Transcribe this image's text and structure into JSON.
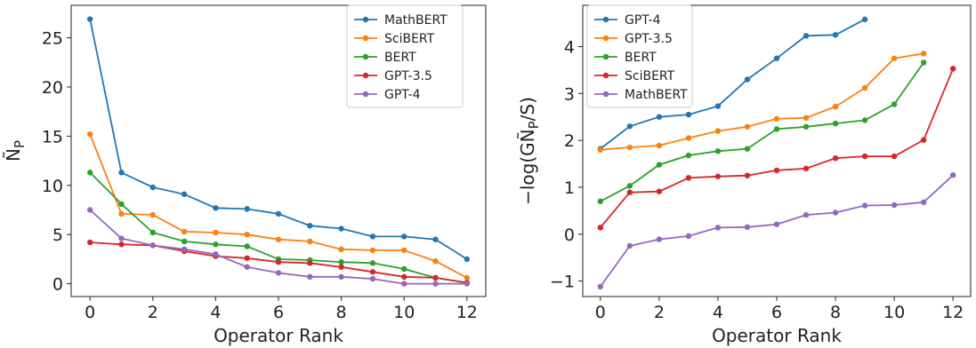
{
  "chart_data": [
    {
      "type": "line",
      "xlabel": "Operator Rank",
      "ylabel": "Ñ_P",
      "xlim": [
        -0.6,
        12.6
      ],
      "ylim": [
        -1.3,
        28.3
      ],
      "xticks": [
        "0",
        "2",
        "4",
        "6",
        "8",
        "10",
        "12"
      ],
      "yticks": [
        "0",
        "5",
        "10",
        "15",
        "20",
        "25"
      ],
      "legend_position": "top-right",
      "grid": false,
      "series": [
        {
          "name": "MathBERT",
          "color": "#1f77b4",
          "x": [
            0,
            1,
            2,
            3,
            4,
            5,
            6,
            7,
            8,
            9,
            10,
            11,
            12
          ],
          "y": [
            26.9,
            11.3,
            9.8,
            9.1,
            7.7,
            7.6,
            7.1,
            5.9,
            5.6,
            4.8,
            4.8,
            4.5,
            2.5
          ]
        },
        {
          "name": "SciBERT",
          "color": "#ff7f0e",
          "x": [
            0,
            1,
            2,
            3,
            4,
            5,
            6,
            7,
            8,
            9,
            10,
            11,
            12
          ],
          "y": [
            15.2,
            7.1,
            7.0,
            5.3,
            5.2,
            5.0,
            4.5,
            4.3,
            3.5,
            3.4,
            3.4,
            2.3,
            0.6
          ]
        },
        {
          "name": "BERT",
          "color": "#2ca02c",
          "x": [
            0,
            1,
            2,
            3,
            4,
            5,
            6,
            7,
            8,
            9,
            10,
            11,
            12
          ],
          "y": [
            11.3,
            8.1,
            5.2,
            4.3,
            4.0,
            3.8,
            2.5,
            2.4,
            2.2,
            2.1,
            1.5,
            0.6,
            0.1
          ]
        },
        {
          "name": "GPT-3.5",
          "color": "#d62728",
          "x": [
            0,
            1,
            2,
            3,
            4,
            5,
            6,
            7,
            8,
            9,
            10,
            11,
            12
          ],
          "y": [
            4.2,
            4.0,
            3.9,
            3.3,
            2.8,
            2.6,
            2.2,
            2.1,
            1.7,
            1.2,
            0.7,
            0.6,
            0.1
          ]
        },
        {
          "name": "GPT-4",
          "color": "#9467bd",
          "x": [
            0,
            1,
            2,
            3,
            4,
            5,
            6,
            7,
            8,
            9,
            10,
            11,
            12
          ],
          "y": [
            7.5,
            4.6,
            3.9,
            3.5,
            3.0,
            1.7,
            1.1,
            0.7,
            0.7,
            0.5,
            0.0,
            0.0,
            0.0
          ]
        }
      ]
    },
    {
      "type": "line",
      "xlabel": "Operator Rank",
      "ylabel": "−log(GÑ_P/S)",
      "xlim": [
        -0.6,
        12.6
      ],
      "ylim": [
        -1.33,
        4.88
      ],
      "xticks": [
        "0",
        "2",
        "4",
        "6",
        "8",
        "10",
        "12"
      ],
      "yticks": [
        "−1",
        "0",
        "1",
        "2",
        "3",
        "4"
      ],
      "legend_position": "top-left",
      "grid": false,
      "series": [
        {
          "name": "GPT-4",
          "color": "#1f77b4",
          "x": [
            0,
            1,
            2,
            3,
            4,
            5,
            6,
            7,
            8,
            9
          ],
          "y": [
            1.82,
            2.3,
            2.5,
            2.55,
            2.73,
            3.3,
            3.75,
            4.23,
            4.25,
            4.58
          ]
        },
        {
          "name": "GPT-3.5",
          "color": "#ff7f0e",
          "x": [
            0,
            1,
            2,
            3,
            4,
            5,
            6,
            7,
            8,
            9,
            10,
            11
          ],
          "y": [
            1.8,
            1.85,
            1.89,
            2.05,
            2.2,
            2.29,
            2.46,
            2.48,
            2.72,
            3.12,
            3.75,
            3.85
          ]
        },
        {
          "name": "BERT",
          "color": "#2ca02c",
          "x": [
            0,
            1,
            2,
            3,
            4,
            5,
            6,
            7,
            8,
            9,
            10,
            11
          ],
          "y": [
            0.7,
            1.03,
            1.48,
            1.68,
            1.77,
            1.82,
            2.24,
            2.29,
            2.36,
            2.43,
            2.77,
            3.66
          ]
        },
        {
          "name": "SciBERT",
          "color": "#d62728",
          "x": [
            0,
            1,
            2,
            3,
            4,
            5,
            6,
            7,
            8,
            9,
            10,
            11,
            12
          ],
          "y": [
            0.14,
            0.89,
            0.91,
            1.2,
            1.23,
            1.25,
            1.36,
            1.4,
            1.62,
            1.66,
            1.66,
            2.01,
            3.53
          ]
        },
        {
          "name": "MathBERT",
          "color": "#9467bd",
          "x": [
            0,
            1,
            2,
            3,
            4,
            5,
            6,
            7,
            8,
            9,
            10,
            11,
            12
          ],
          "y": [
            -1.12,
            -0.25,
            -0.11,
            -0.04,
            0.14,
            0.15,
            0.21,
            0.41,
            0.46,
            0.61,
            0.62,
            0.68,
            1.26
          ]
        }
      ]
    }
  ]
}
